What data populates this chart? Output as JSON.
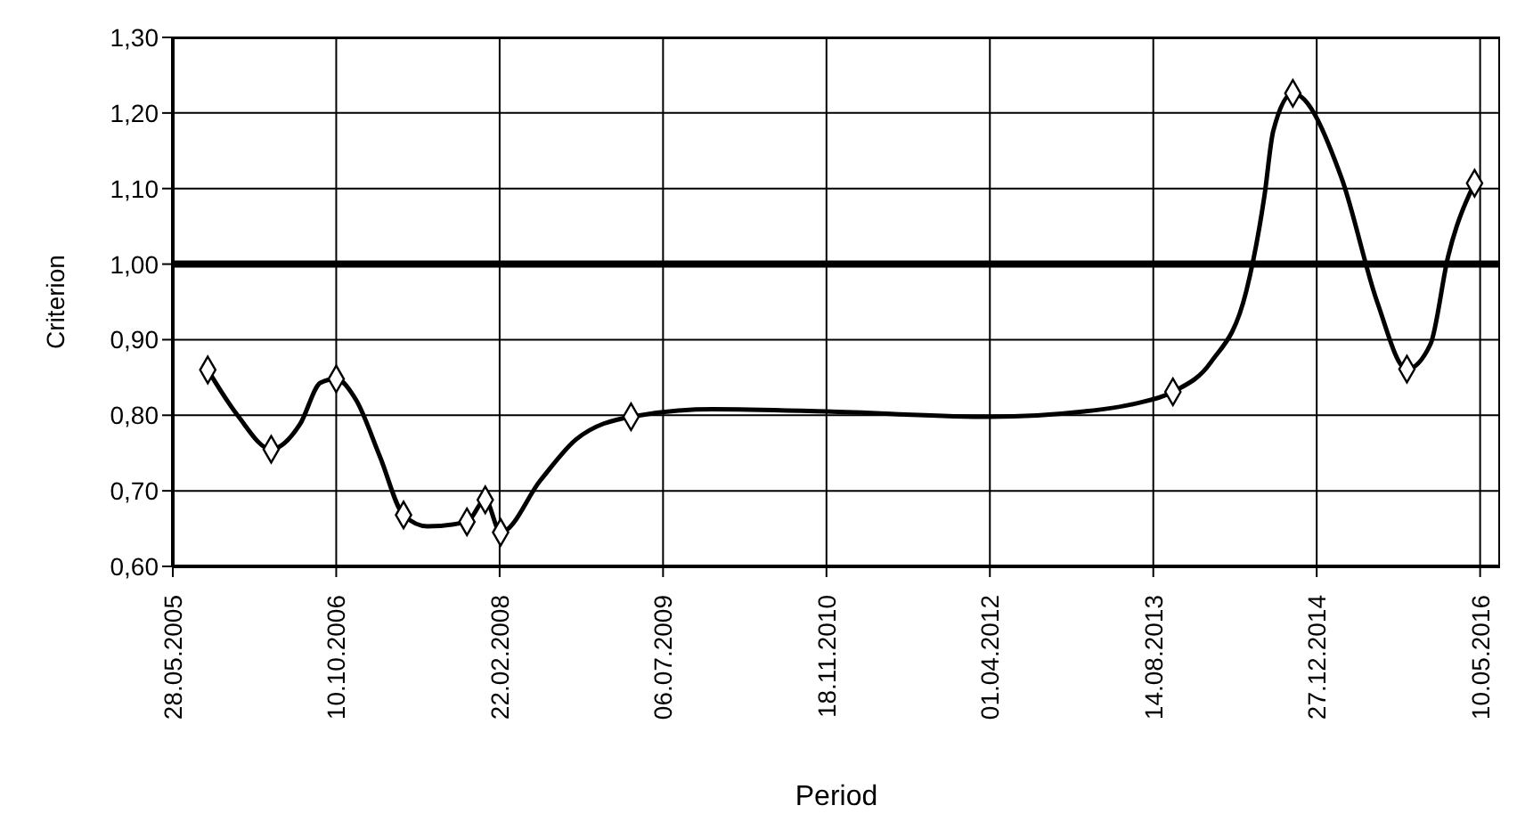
{
  "chart_data": {
    "type": "line",
    "xlabel": "Period",
    "ylabel": "Criterion",
    "xlim": [
      "2005-05-28",
      "2016-07-10"
    ],
    "xticks": [
      {
        "value": "2005-05-28",
        "label": "28.05.2005"
      },
      {
        "value": "2006-10-10",
        "label": "10.10.2006"
      },
      {
        "value": "2008-02-22",
        "label": "22.02.2008"
      },
      {
        "value": "2009-07-06",
        "label": "06.07.2009"
      },
      {
        "value": "2010-11-18",
        "label": "18.11.2010"
      },
      {
        "value": "2012-04-01",
        "label": "01.04.2012"
      },
      {
        "value": "2013-08-14",
        "label": "14.08.2013"
      },
      {
        "value": "2014-12-27",
        "label": "27.12.2014"
      },
      {
        "value": "2016-05-10",
        "label": "10.05.2016"
      }
    ],
    "ylim": [
      0.6,
      1.3
    ],
    "yticks": [
      {
        "value": 0.6,
        "label": "0,60"
      },
      {
        "value": 0.7,
        "label": "0,70"
      },
      {
        "value": 0.8,
        "label": "0,80"
      },
      {
        "value": 0.9,
        "label": "0,90"
      },
      {
        "value": 1.0,
        "label": "1,00"
      },
      {
        "value": 1.1,
        "label": "1,10"
      },
      {
        "value": 1.2,
        "label": "1,20"
      },
      {
        "value": 1.3,
        "label": "1,30"
      }
    ],
    "grid": true,
    "ref_lines": [
      {
        "axis": "y",
        "value": 1.0,
        "color": "#000000"
      }
    ],
    "series": [
      {
        "color": "#000000",
        "marker": "none",
        "x": [
          "2005-09-12",
          "2005-12-12",
          "2006-03-25",
          "2006-06-21",
          "2006-08-23",
          "2006-10-10",
          "2006-12-10",
          "2007-02-21",
          "2007-05-04",
          "2007-07-16",
          "2007-11-14",
          "2008-01-09",
          "2008-02-25",
          "2008-06-26",
          "2008-10-13",
          "2009-03-30",
          "2009-12-05",
          "2010-11-18",
          "2012-04-01",
          "2013-01-15",
          "2013-06-15",
          "2013-10-13",
          "2014-02-06",
          "2014-05-26",
          "2014-07-20",
          "2014-08-16",
          "2014-10-15",
          "2015-03-13",
          "2015-06-30",
          "2015-09-29",
          "2015-12-10",
          "2016-02-02",
          "2016-04-23"
        ],
        "values": [
          0.86,
          0.8,
          0.755,
          0.788,
          0.843,
          0.848,
          0.82,
          0.745,
          0.668,
          0.653,
          0.659,
          0.688,
          0.645,
          0.714,
          0.768,
          0.798,
          0.808,
          0.805,
          0.798,
          0.805,
          0.815,
          0.831,
          0.87,
          0.965,
          1.09,
          1.176,
          1.226,
          1.114,
          0.95,
          0.861,
          0.894,
          1.01,
          1.107
        ]
      },
      {
        "type": "scatter",
        "color": "#000000",
        "marker": "diamond",
        "x": [
          "2005-09-12",
          "2006-03-25",
          "2006-10-10",
          "2007-05-04",
          "2007-11-14",
          "2008-01-09",
          "2008-02-25",
          "2009-03-30",
          "2013-10-13",
          "2014-10-15",
          "2015-09-29",
          "2016-04-23"
        ],
        "values": [
          0.86,
          0.755,
          0.848,
          0.668,
          0.659,
          0.688,
          0.645,
          0.798,
          0.831,
          1.226,
          0.861,
          1.107
        ]
      }
    ]
  }
}
